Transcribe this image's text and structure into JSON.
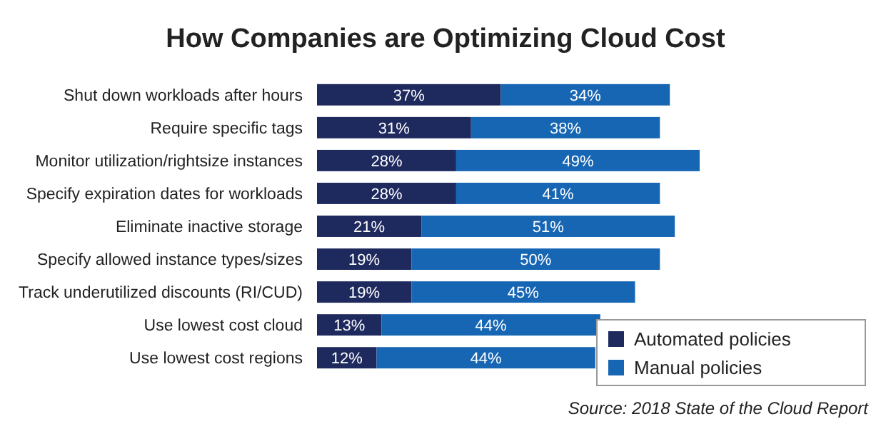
{
  "chart_data": {
    "type": "bar",
    "orientation": "horizontal",
    "stacked": true,
    "title": "How Companies are Optimizing Cloud Cost",
    "categories": [
      "Shut down workloads after hours",
      "Require specific tags",
      "Monitor utilization/rightsize instances",
      "Specify expiration dates for workloads",
      "Eliminate inactive storage",
      "Specify allowed instance types/sizes",
      "Track underutilized discounts (RI/CUD)",
      "Use lowest cost cloud",
      "Use lowest cost regions"
    ],
    "series": [
      {
        "name": "Automated policies",
        "color": "#1e2a5e",
        "values": [
          37,
          31,
          28,
          28,
          21,
          19,
          19,
          13,
          12
        ],
        "value_labels": [
          "37%",
          "31%",
          "28%",
          "28%",
          "21%",
          "19%",
          "19%",
          "13%",
          "12%"
        ]
      },
      {
        "name": "Manual policies",
        "color": "#1766b4",
        "values": [
          34,
          38,
          49,
          41,
          51,
          50,
          45,
          44,
          44
        ],
        "value_labels": [
          "34%",
          "38%",
          "49%",
          "41%",
          "51%",
          "50%",
          "45%",
          "44%",
          "44%"
        ]
      }
    ],
    "legend": "bottom right",
    "tick_labels": "y",
    "annotations": [
      "Source: 2018 State of the Cloud Report"
    ]
  }
}
